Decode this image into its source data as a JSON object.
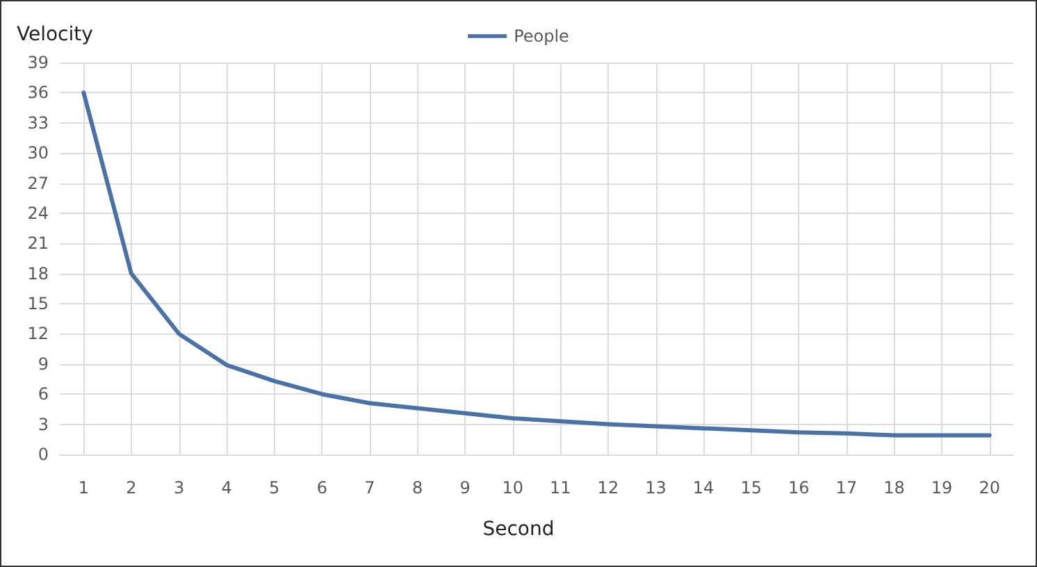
{
  "chart_data": {
    "type": "line",
    "ylabel": "Velocity",
    "xlabel": "Second",
    "x": [
      1,
      2,
      3,
      4,
      5,
      6,
      7,
      8,
      9,
      10,
      11,
      12,
      13,
      14,
      15,
      16,
      17,
      18,
      19,
      20
    ],
    "series": [
      {
        "name": "People",
        "color": "#4a72a8",
        "values": [
          36,
          18,
          12,
          8.9,
          7.3,
          6,
          5.1,
          4.6,
          4.1,
          3.6,
          3.3,
          3.0,
          2.8,
          2.6,
          2.4,
          2.2,
          2.1,
          1.9,
          1.9,
          1.9
        ]
      }
    ],
    "xlim": [
      0.5,
      20.5
    ],
    "xticks": [
      1,
      2,
      3,
      4,
      5,
      6,
      7,
      8,
      9,
      10,
      11,
      12,
      13,
      14,
      15,
      16,
      17,
      18,
      19,
      20
    ],
    "ylim": [
      0,
      39
    ],
    "yticks": [
      0,
      3,
      6,
      9,
      12,
      15,
      18,
      21,
      24,
      27,
      30,
      33,
      36,
      39
    ],
    "grid": true,
    "legend": "top",
    "marker": "none",
    "line_style": "solid"
  }
}
